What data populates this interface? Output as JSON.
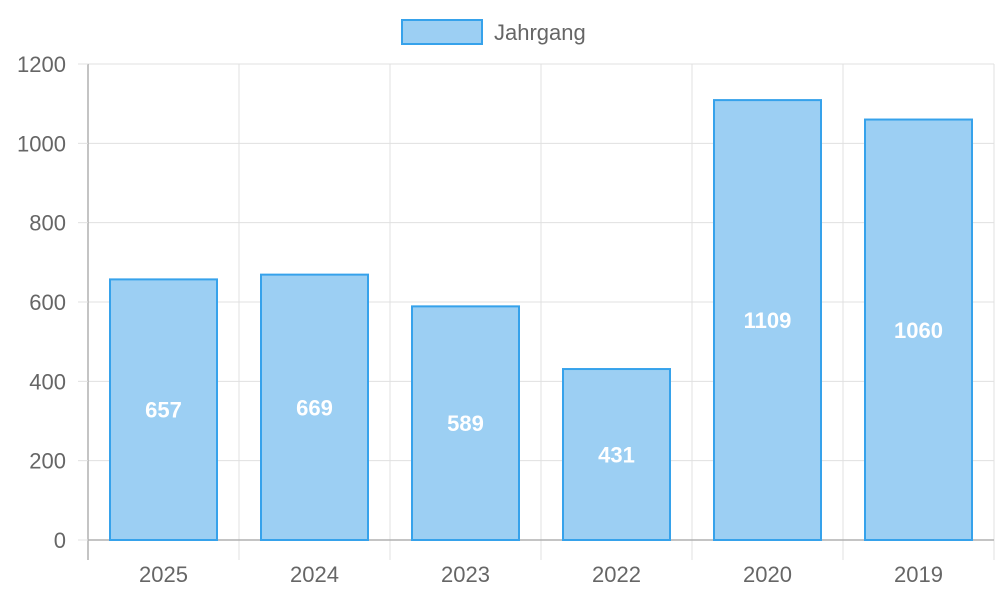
{
  "chart_data": {
    "type": "bar",
    "categories": [
      "2025",
      "2024",
      "2023",
      "2022",
      "2020",
      "2019"
    ],
    "series": [
      {
        "name": "Jahrgang",
        "values": [
          657,
          669,
          589,
          431,
          1109,
          1060
        ]
      }
    ],
    "data_labels": [
      "657",
      "669",
      "589",
      "431",
      "1109",
      "1060"
    ],
    "y_ticks": [
      "0",
      "200",
      "400",
      "600",
      "800",
      "1000",
      "1200"
    ],
    "ylim": [
      0,
      1200
    ],
    "grid": true,
    "legend_position": "top-center",
    "colors": {
      "bar_fill": "#9ccff3",
      "bar_stroke": "#36a2eb",
      "grid": "#e0e0e0",
      "axis": "#b0b0b0",
      "text": "#666666",
      "data_label": "#ffffff"
    }
  }
}
